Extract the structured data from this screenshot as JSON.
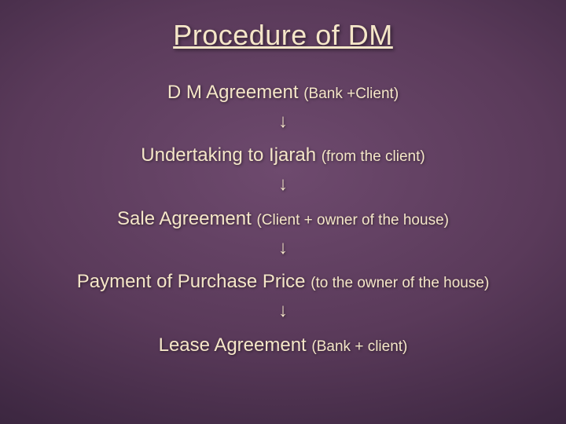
{
  "title": "Procedure of DM",
  "steps": [
    {
      "main": "D M Agreement ",
      "sub": "(Bank +Client)"
    },
    {
      "main": "Undertaking to Ijarah ",
      "sub": "(from the client)"
    },
    {
      "main": "Sale Agreement ",
      "sub": "(Client + owner of the house)"
    },
    {
      "main": "Payment of Purchase Price ",
      "sub": "(to the owner of the house)"
    },
    {
      "main": "Lease Agreement ",
      "sub": "(Bank + client)"
    }
  ],
  "arrow_glyph": "↓",
  "colors": {
    "text": "#f5e6c8",
    "bg_center": "#6e4a6e",
    "bg_outer": "#2a1c30"
  },
  "typography": {
    "title_fontsize": 36,
    "step_main_fontsize": 24,
    "step_sub_fontsize": 19,
    "font_family": "Verdana"
  }
}
